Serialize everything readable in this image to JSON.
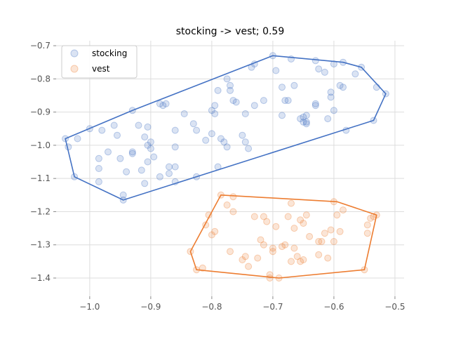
{
  "chart_data": {
    "type": "scatter",
    "title": "stocking -> vest; 0.59",
    "xlabel": "",
    "ylabel": "",
    "xlim": [
      -1.055,
      -0.485
    ],
    "ylim": [
      -1.455,
      -0.685
    ],
    "xticks": [
      -1.0,
      -0.9,
      -0.8,
      -0.7,
      -0.6,
      -0.5
    ],
    "xtick_labels": [
      "−1.0",
      "−0.9",
      "−0.8",
      "−0.7",
      "−0.6",
      "−0.5"
    ],
    "yticks": [
      -0.7,
      -0.8,
      -0.9,
      -1.0,
      -1.1,
      -1.2,
      -1.3,
      -1.4
    ],
    "ytick_labels": [
      "−0.7",
      "−0.8",
      "−0.9",
      "−1.0",
      "−1.1",
      "−1.2",
      "−1.3",
      "−1.4"
    ],
    "grid": true,
    "legend_position": "top-left",
    "series": [
      {
        "name": "stocking",
        "color": "#4472c4",
        "points": [
          [
            -1.04,
            -0.98
          ],
          [
            -1.035,
            -1.005
          ],
          [
            -1.02,
            -0.98
          ],
          [
            -1.025,
            -1.095
          ],
          [
            -1.0,
            -0.95
          ],
          [
            -0.985,
            -1.04
          ],
          [
            -0.985,
            -1.07
          ],
          [
            -0.98,
            -0.955
          ],
          [
            -0.985,
            -1.11
          ],
          [
            -0.97,
            -1.02
          ],
          [
            -0.96,
            -0.94
          ],
          [
            -0.955,
            -0.97
          ],
          [
            -0.95,
            -1.04
          ],
          [
            -0.945,
            -1.165
          ],
          [
            -0.945,
            -1.15
          ],
          [
            -0.94,
            -1.08
          ],
          [
            -0.93,
            -1.02
          ],
          [
            -0.93,
            -1.025
          ],
          [
            -0.93,
            -0.895
          ],
          [
            -0.92,
            -0.94
          ],
          [
            -0.915,
            -1.075
          ],
          [
            -0.91,
            -1.115
          ],
          [
            -0.91,
            -0.975
          ],
          [
            -0.905,
            -0.945
          ],
          [
            -0.905,
            -1.0
          ],
          [
            -0.905,
            -1.05
          ],
          [
            -0.9,
            -1.01
          ],
          [
            -0.9,
            -0.99
          ],
          [
            -0.895,
            -1.035
          ],
          [
            -0.885,
            -1.095
          ],
          [
            -0.885,
            -0.875
          ],
          [
            -0.88,
            -0.88
          ],
          [
            -0.875,
            -0.875
          ],
          [
            -0.87,
            -1.085
          ],
          [
            -0.87,
            -1.065
          ],
          [
            -0.86,
            -0.955
          ],
          [
            -0.86,
            -1.005
          ],
          [
            -0.86,
            -1.065
          ],
          [
            -0.86,
            -1.11
          ],
          [
            -0.845,
            -0.905
          ],
          [
            -0.83,
            -0.935
          ],
          [
            -0.825,
            -0.955
          ],
          [
            -0.825,
            -1.095
          ],
          [
            -0.81,
            -0.985
          ],
          [
            -0.8,
            -0.965
          ],
          [
            -0.8,
            -0.895
          ],
          [
            -0.795,
            -0.88
          ],
          [
            -0.795,
            -0.905
          ],
          [
            -0.79,
            -1.065
          ],
          [
            -0.79,
            -0.835
          ],
          [
            -0.785,
            -0.98
          ],
          [
            -0.78,
            -0.99
          ],
          [
            -0.775,
            -1.005
          ],
          [
            -0.775,
            -0.8
          ],
          [
            -0.77,
            -0.82
          ],
          [
            -0.77,
            -0.835
          ],
          [
            -0.765,
            -0.865
          ],
          [
            -0.76,
            -0.87
          ],
          [
            -0.75,
            -0.97
          ],
          [
            -0.745,
            -0.99
          ],
          [
            -0.745,
            -0.905
          ],
          [
            -0.74,
            -1.01
          ],
          [
            -0.735,
            -0.765
          ],
          [
            -0.73,
            -0.755
          ],
          [
            -0.73,
            -0.88
          ],
          [
            -0.715,
            -0.865
          ],
          [
            -0.7,
            -0.73
          ],
          [
            -0.695,
            -0.775
          ],
          [
            -0.685,
            -0.91
          ],
          [
            -0.685,
            -0.825
          ],
          [
            -0.68,
            -0.865
          ],
          [
            -0.675,
            -0.865
          ],
          [
            -0.67,
            -0.74
          ],
          [
            -0.665,
            -0.82
          ],
          [
            -0.655,
            -0.92
          ],
          [
            -0.65,
            -0.93
          ],
          [
            -0.65,
            -0.915
          ],
          [
            -0.645,
            -0.93
          ],
          [
            -0.645,
            -0.91
          ],
          [
            -0.645,
            -0.935
          ],
          [
            -0.63,
            -0.745
          ],
          [
            -0.63,
            -0.875
          ],
          [
            -0.63,
            -0.88
          ],
          [
            -0.625,
            -0.77
          ],
          [
            -0.615,
            -0.78
          ],
          [
            -0.61,
            -0.92
          ],
          [
            -0.605,
            -0.855
          ],
          [
            -0.605,
            -0.84
          ],
          [
            -0.6,
            -0.755
          ],
          [
            -0.6,
            -0.895
          ],
          [
            -0.59,
            -0.82
          ],
          [
            -0.585,
            -0.825
          ],
          [
            -0.585,
            -0.75
          ],
          [
            -0.58,
            -0.955
          ],
          [
            -0.565,
            -0.785
          ],
          [
            -0.555,
            -0.765
          ],
          [
            -0.535,
            -0.925
          ],
          [
            -0.53,
            -0.825
          ],
          [
            -0.515,
            -0.845
          ]
        ],
        "hull": [
          [
            -0.7,
            -0.73
          ],
          [
            -0.585,
            -0.75
          ],
          [
            -0.555,
            -0.765
          ],
          [
            -0.515,
            -0.845
          ],
          [
            -0.535,
            -0.925
          ],
          [
            -0.945,
            -1.165
          ],
          [
            -1.025,
            -1.095
          ],
          [
            -1.04,
            -0.98
          ],
          [
            -0.93,
            -0.895
          ]
        ]
      },
      {
        "name": "vest",
        "color": "#ed7d31",
        "points": [
          [
            -0.835,
            -1.32
          ],
          [
            -0.825,
            -1.375
          ],
          [
            -0.815,
            -1.37
          ],
          [
            -0.81,
            -1.24
          ],
          [
            -0.805,
            -1.21
          ],
          [
            -0.8,
            -1.27
          ],
          [
            -0.795,
            -1.26
          ],
          [
            -0.785,
            -1.15
          ],
          [
            -0.775,
            -1.18
          ],
          [
            -0.77,
            -1.32
          ],
          [
            -0.765,
            -1.2
          ],
          [
            -0.765,
            -1.155
          ],
          [
            -0.75,
            -1.345
          ],
          [
            -0.745,
            -1.335
          ],
          [
            -0.74,
            -1.365
          ],
          [
            -0.73,
            -1.215
          ],
          [
            -0.725,
            -1.34
          ],
          [
            -0.72,
            -1.285
          ],
          [
            -0.715,
            -1.215
          ],
          [
            -0.715,
            -1.3
          ],
          [
            -0.71,
            -1.23
          ],
          [
            -0.705,
            -1.39
          ],
          [
            -0.705,
            -1.4
          ],
          [
            -0.7,
            -1.31
          ],
          [
            -0.7,
            -1.32
          ],
          [
            -0.695,
            -1.245
          ],
          [
            -0.69,
            -1.4
          ],
          [
            -0.685,
            -1.305
          ],
          [
            -0.68,
            -1.3
          ],
          [
            -0.675,
            -1.215
          ],
          [
            -0.67,
            -1.175
          ],
          [
            -0.67,
            -1.35
          ],
          [
            -0.665,
            -1.25
          ],
          [
            -0.665,
            -1.31
          ],
          [
            -0.66,
            -1.335
          ],
          [
            -0.655,
            -1.35
          ],
          [
            -0.655,
            -1.225
          ],
          [
            -0.65,
            -1.345
          ],
          [
            -0.65,
            -1.235
          ],
          [
            -0.645,
            -1.21
          ],
          [
            -0.64,
            -1.275
          ],
          [
            -0.625,
            -1.33
          ],
          [
            -0.625,
            -1.29
          ],
          [
            -0.62,
            -1.29
          ],
          [
            -0.615,
            -1.265
          ],
          [
            -0.61,
            -1.34
          ],
          [
            -0.605,
            -1.255
          ],
          [
            -0.6,
            -1.29
          ],
          [
            -0.6,
            -1.17
          ],
          [
            -0.595,
            -1.21
          ],
          [
            -0.59,
            -1.26
          ],
          [
            -0.585,
            -1.195
          ],
          [
            -0.55,
            -1.375
          ],
          [
            -0.545,
            -1.24
          ],
          [
            -0.545,
            -1.265
          ],
          [
            -0.54,
            -1.22
          ],
          [
            -0.535,
            -1.215
          ],
          [
            -0.53,
            -1.21
          ]
        ],
        "hull": [
          [
            -0.785,
            -1.15
          ],
          [
            -0.595,
            -1.17
          ],
          [
            -0.53,
            -1.21
          ],
          [
            -0.55,
            -1.375
          ],
          [
            -0.69,
            -1.4
          ],
          [
            -0.825,
            -1.375
          ],
          [
            -0.835,
            -1.32
          ]
        ]
      }
    ]
  }
}
